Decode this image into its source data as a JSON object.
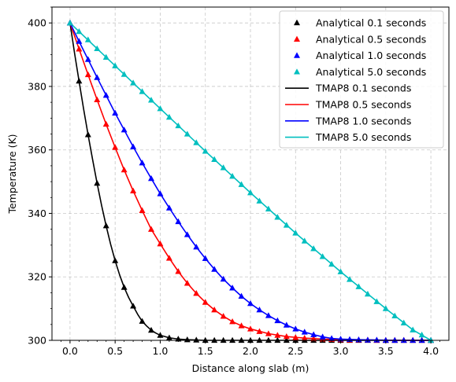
{
  "chart_data": {
    "type": "line",
    "title": "",
    "xlabel": "Distance along slab (m)",
    "ylabel": "Temperature (K)",
    "xlim": [
      -0.2,
      4.2
    ],
    "ylim": [
      300,
      405
    ],
    "xticks": [
      0.0,
      0.5,
      1.0,
      1.5,
      2.0,
      2.5,
      3.0,
      3.5,
      4.0
    ],
    "xtick_labels": [
      "0.0",
      "0.5",
      "1.0",
      "1.5",
      "2.0",
      "2.5",
      "3.0",
      "3.5",
      "4.0"
    ],
    "yticks": [
      300,
      320,
      340,
      360,
      380,
      400
    ],
    "ytick_labels": [
      "300",
      "320",
      "340",
      "360",
      "380",
      "400"
    ],
    "grid": true,
    "legend_position": "top-right",
    "colors": {
      "t01": "#000000",
      "t05": "#ff0000",
      "t10": "#0000ff",
      "t50": "#00bfbf"
    },
    "marker_x": [
      0.0,
      0.1,
      0.2,
      0.3,
      0.4,
      0.5,
      0.6,
      0.7,
      0.8,
      0.9,
      1.0,
      1.1,
      1.2,
      1.3,
      1.4,
      1.5,
      1.6,
      1.7,
      1.8,
      1.9,
      2.0,
      2.1,
      2.2,
      2.3,
      2.4,
      2.5,
      2.6,
      2.7,
      2.8,
      2.9,
      3.0,
      3.1,
      3.2,
      3.3,
      3.4,
      3.5,
      3.6,
      3.7,
      3.8,
      3.9,
      4.0
    ],
    "series": [
      {
        "name": "Analytical 0.1 seconds",
        "kind": "marker",
        "color_key": "t01",
        "values": [
          400.0,
          381.7,
          364.8,
          349.5,
          336.1,
          325.1,
          316.7,
          310.8,
          306.0,
          303.2,
          301.6,
          300.8,
          300.4,
          300.2,
          300.1,
          300.0,
          300.0,
          300.0,
          300.0,
          300.0,
          300.0,
          300.0,
          300.0,
          300.0,
          300.0,
          300.0,
          300.0,
          300.0,
          300.0,
          300.0,
          300.0,
          300.0,
          300.0,
          300.0,
          300.0,
          300.0,
          300.0,
          300.0,
          300.0,
          300.0,
          300.0
        ]
      },
      {
        "name": "Analytical 0.5 seconds",
        "kind": "marker",
        "color_key": "t05",
        "values": [
          400.0,
          391.8,
          383.7,
          375.8,
          368.1,
          360.8,
          353.7,
          347.1,
          340.9,
          335.0,
          330.4,
          325.9,
          321.7,
          318.0,
          314.8,
          312.0,
          309.6,
          307.6,
          305.9,
          304.6,
          303.6,
          302.8,
          302.1,
          301.6,
          301.2,
          300.9,
          300.7,
          300.5,
          300.4,
          300.3,
          300.2,
          300.1,
          300.1,
          300.1,
          300.0,
          300.0,
          300.0,
          300.0,
          300.0,
          300.0,
          300.0
        ]
      },
      {
        "name": "Analytical 1.0 seconds",
        "kind": "marker",
        "color_key": "t10",
        "values": [
          400.0,
          394.2,
          388.5,
          382.8,
          377.2,
          371.6,
          366.3,
          361.0,
          355.9,
          351.0,
          346.2,
          341.7,
          337.4,
          333.3,
          329.4,
          325.8,
          322.4,
          319.3,
          316.5,
          313.9,
          311.6,
          309.6,
          307.8,
          306.2,
          304.8,
          303.6,
          302.6,
          301.8,
          301.1,
          300.6,
          300.4,
          300.3,
          300.2,
          300.1,
          300.1,
          300.0,
          300.0,
          300.0,
          300.0,
          300.0,
          300.0
        ]
      },
      {
        "name": "Analytical 5.0 seconds",
        "kind": "marker",
        "color_key": "t50",
        "values": [
          400.0,
          397.3,
          394.7,
          391.9,
          389.2,
          386.5,
          383.8,
          381.1,
          378.4,
          375.7,
          373.0,
          370.3,
          367.6,
          365.0,
          362.3,
          359.6,
          357.0,
          354.4,
          351.7,
          349.1,
          346.5,
          343.9,
          341.4,
          338.8,
          336.3,
          333.8,
          331.3,
          328.9,
          326.4,
          324.0,
          321.6,
          319.2,
          316.9,
          314.6,
          312.2,
          310.0,
          307.7,
          305.5,
          303.3,
          301.7,
          300.0
        ]
      },
      {
        "name": "TMAP8 0.1 seconds",
        "kind": "line",
        "color_key": "t01",
        "x": [
          0.0,
          0.05,
          0.1,
          0.15,
          0.2,
          0.25,
          0.3,
          0.35,
          0.4,
          0.45,
          0.5,
          0.55,
          0.6,
          0.65,
          0.7,
          0.75,
          0.8,
          0.85,
          0.9,
          0.95,
          1.0,
          1.1,
          1.2,
          1.3,
          1.4,
          1.5,
          1.75,
          2.0,
          2.5,
          3.0,
          3.5,
          4.0
        ],
        "values": [
          400.0,
          390.5,
          381.7,
          373.0,
          364.8,
          357.0,
          349.5,
          342.5,
          336.1,
          330.3,
          325.1,
          320.6,
          316.7,
          313.5,
          310.8,
          308.2,
          306.0,
          304.5,
          303.2,
          302.3,
          301.6,
          300.8,
          300.4,
          300.2,
          300.1,
          300.0,
          300.0,
          300.0,
          300.0,
          300.0,
          300.0,
          300.0
        ]
      },
      {
        "name": "TMAP8 0.5 seconds",
        "kind": "line",
        "color_key": "t05",
        "x": [
          0.0,
          0.1,
          0.2,
          0.3,
          0.4,
          0.5,
          0.6,
          0.7,
          0.8,
          0.9,
          1.0,
          1.1,
          1.2,
          1.3,
          1.4,
          1.5,
          1.6,
          1.7,
          1.8,
          1.9,
          2.0,
          2.2,
          2.4,
          2.6,
          2.8,
          3.0,
          3.3,
          3.6,
          4.0
        ],
        "values": [
          400.0,
          391.8,
          383.7,
          375.8,
          368.1,
          360.8,
          353.7,
          347.1,
          340.9,
          335.0,
          330.4,
          325.9,
          321.7,
          318.0,
          314.8,
          312.0,
          309.6,
          307.6,
          305.9,
          304.6,
          303.6,
          302.1,
          301.2,
          300.7,
          300.4,
          300.2,
          300.1,
          300.0,
          300.0
        ]
      },
      {
        "name": "TMAP8 1.0 seconds",
        "kind": "line",
        "color_key": "t10",
        "x": [
          0.0,
          0.1,
          0.2,
          0.3,
          0.4,
          0.5,
          0.6,
          0.7,
          0.8,
          0.9,
          1.0,
          1.1,
          1.2,
          1.3,
          1.4,
          1.5,
          1.6,
          1.7,
          1.8,
          1.9,
          2.0,
          2.1,
          2.2,
          2.3,
          2.4,
          2.5,
          2.6,
          2.7,
          2.8,
          2.9,
          3.0,
          3.2,
          3.4,
          3.6,
          3.8,
          4.0
        ],
        "values": [
          400.0,
          394.2,
          388.5,
          382.8,
          377.2,
          371.6,
          366.3,
          361.0,
          355.9,
          351.0,
          346.2,
          341.7,
          337.4,
          333.3,
          329.4,
          325.8,
          322.4,
          319.3,
          316.5,
          313.9,
          311.6,
          309.6,
          307.8,
          306.2,
          304.8,
          303.6,
          302.6,
          301.8,
          301.1,
          300.6,
          300.4,
          300.2,
          300.1,
          300.0,
          300.0,
          300.0
        ]
      },
      {
        "name": "TMAP8 5.0 seconds",
        "kind": "line",
        "color_key": "t50",
        "x": [
          0.0,
          0.5,
          1.0,
          1.5,
          2.0,
          2.5,
          3.0,
          3.5,
          3.8,
          4.0
        ],
        "values": [
          400.0,
          386.5,
          373.0,
          359.6,
          346.5,
          333.8,
          321.6,
          310.0,
          303.3,
          300.0
        ]
      }
    ]
  }
}
